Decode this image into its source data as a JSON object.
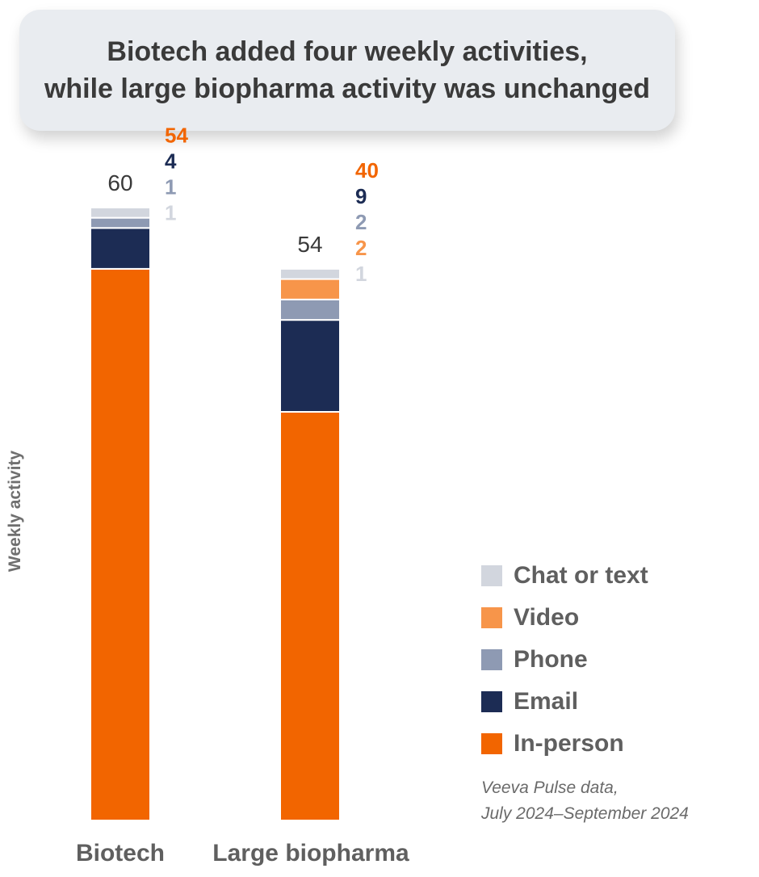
{
  "chart_data": {
    "type": "bar",
    "stacked": true,
    "title_lines": [
      "Biotech added four weekly activities,",
      "while large biopharma activity was unchanged"
    ],
    "ylabel": "Weekly activity",
    "xlabel": "",
    "categories": [
      "Biotech",
      "Large biopharma"
    ],
    "totals": [
      "60",
      "54"
    ],
    "ylim": [
      0,
      60
    ],
    "grid": false,
    "legend_position": "right",
    "series": [
      {
        "name": "In-person",
        "color": "#f26500",
        "label_color": "#f26500",
        "values": [
          54,
          40
        ]
      },
      {
        "name": "Email",
        "color": "#1c2c54",
        "label_color": "#1c2c54",
        "values": [
          4,
          9
        ]
      },
      {
        "name": "Phone",
        "color": "#8e9ab3",
        "label_color": "#8e9ab3",
        "values": [
          1,
          2
        ]
      },
      {
        "name": "Video",
        "color": "#f7954a",
        "label_color": "#f7954a",
        "values": [
          0,
          2
        ]
      },
      {
        "name": "Chat or text",
        "color": "#d2d6de",
        "label_color": "#d2d6de",
        "values": [
          1,
          1
        ]
      }
    ],
    "legend_order": [
      "Chat or text",
      "Video",
      "Phone",
      "Email",
      "In-person"
    ],
    "source_lines": [
      "Veeva Pulse data,",
      "July 2024–September 2024"
    ]
  }
}
